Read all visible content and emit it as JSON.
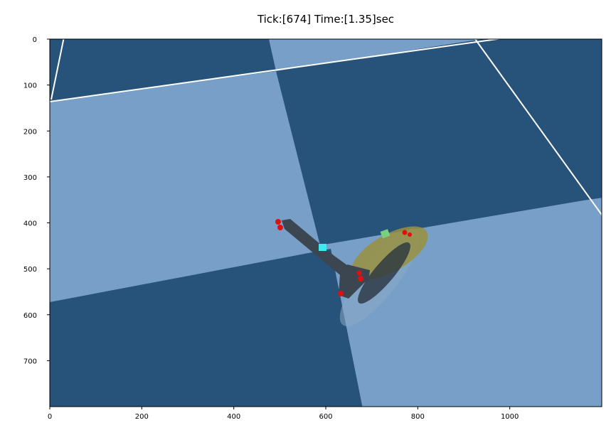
{
  "title": "Tick:[674] Time:[1.35]sec",
  "plot": {
    "x_ticks": [
      {
        "value": 0,
        "label": "0"
      },
      {
        "value": 200,
        "label": "200"
      },
      {
        "value": 400,
        "label": "400"
      },
      {
        "value": 600,
        "label": "600"
      },
      {
        "value": 800,
        "label": "800"
      },
      {
        "value": 1000,
        "label": "1000"
      }
    ],
    "y_ticks": [
      {
        "value": 0,
        "label": "0"
      },
      {
        "value": 100,
        "label": "100"
      },
      {
        "value": 200,
        "label": "200"
      },
      {
        "value": 300,
        "label": "300"
      },
      {
        "value": 400,
        "label": "400"
      },
      {
        "value": 500,
        "label": "500"
      },
      {
        "value": 600,
        "label": "600"
      },
      {
        "value": 700,
        "label": "700"
      }
    ],
    "x_range": [
      0,
      1200
    ],
    "y_range": [
      0,
      800
    ],
    "y_inverted": true,
    "colors": {
      "floor_dark": "#27527a",
      "floor_light": "#789fc8",
      "grid_line": "#ffffff",
      "robot_body": "#3b4650",
      "object": "#9a9040",
      "contact_point": "#e01010",
      "marker_cyan": "#40e8f0",
      "marker_green": "#78d080"
    }
  }
}
